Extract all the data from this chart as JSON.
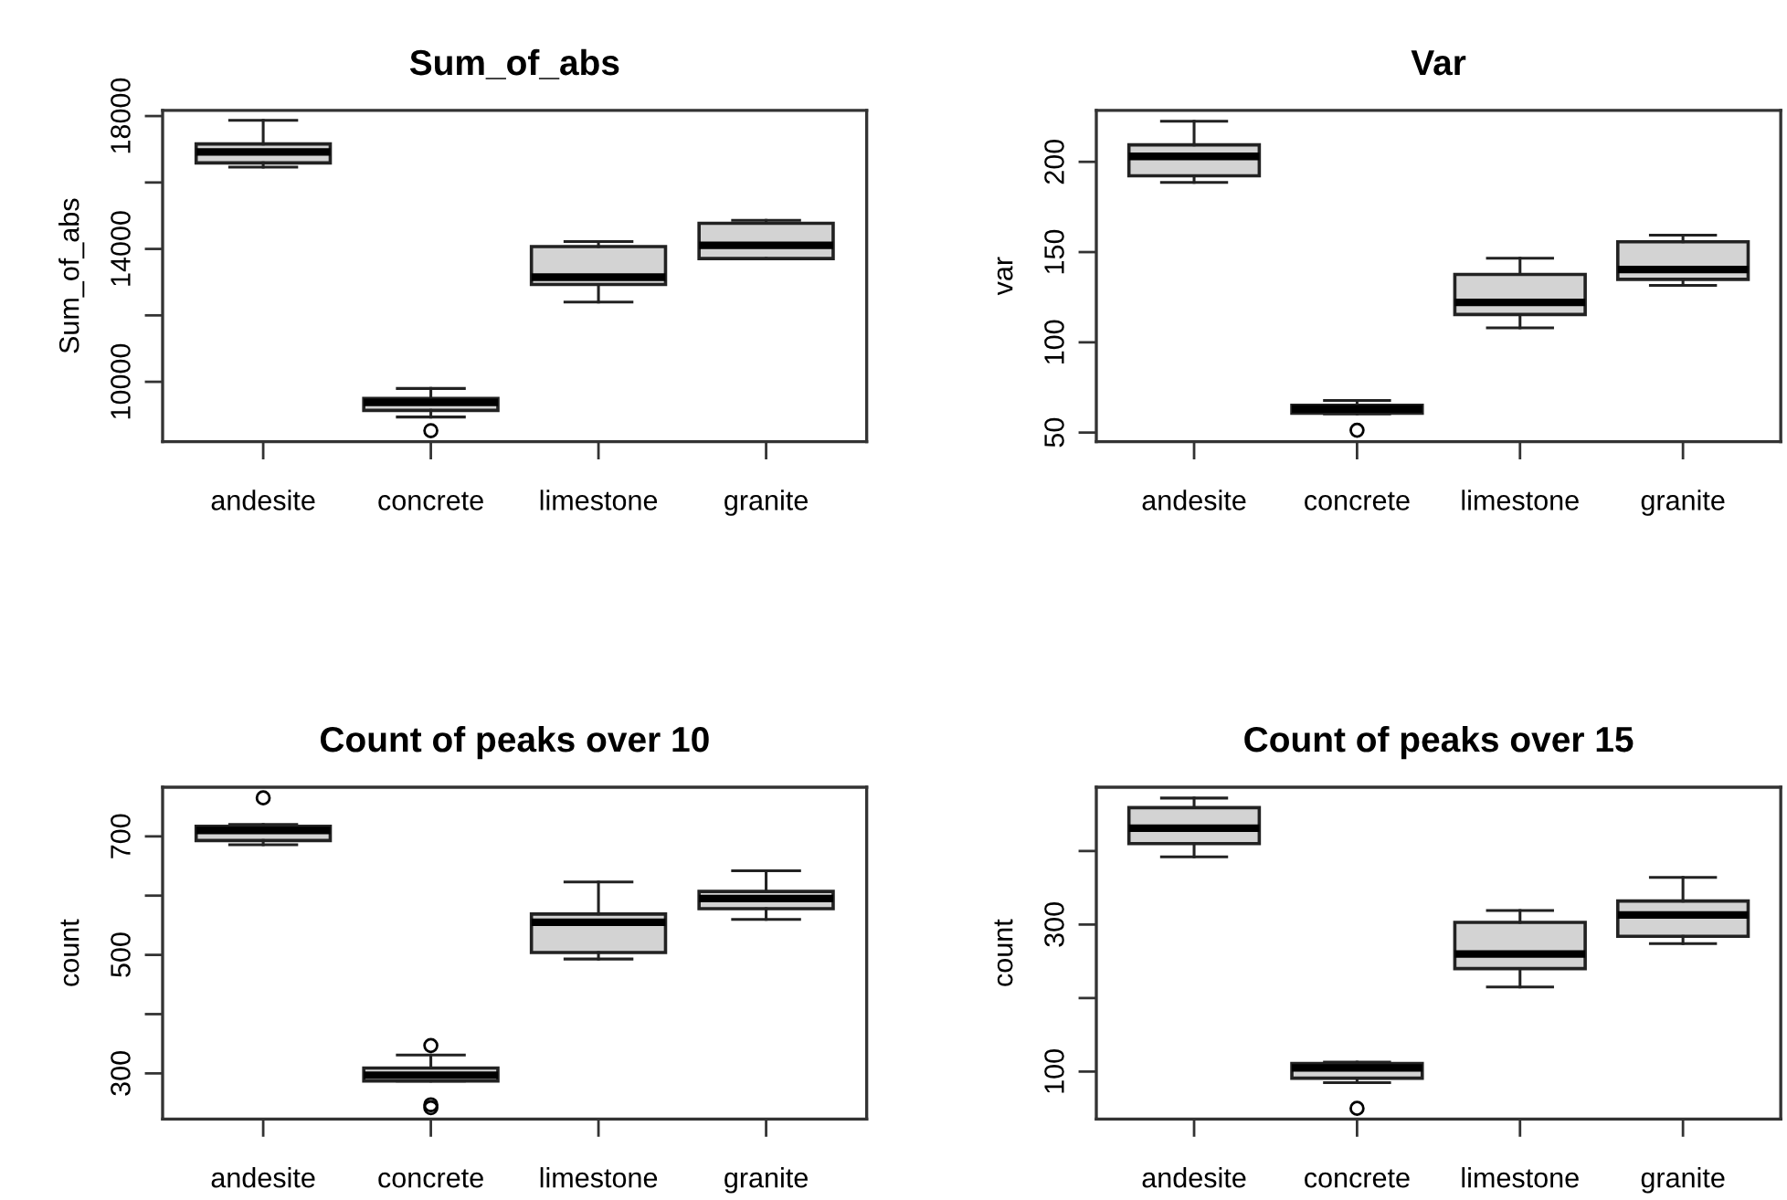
{
  "chart_data": [
    {
      "type": "box",
      "title": "Sum_of_abs",
      "ylabel": "Sum_of_abs",
      "categories": [
        "andesite",
        "concrete",
        "limestone",
        "granite"
      ],
      "color": "#d3d3d3",
      "ylim": [
        8200,
        18170
      ],
      "yticks": [
        10000,
        {
          "value": 12000,
          "label": null
        },
        14000,
        {
          "value": 16000,
          "label": null
        },
        18000
      ],
      "grid": false,
      "legend": false,
      "boxes": [
        {
          "low": 16460,
          "q1": 16590,
          "median": 16920,
          "q3": 17160,
          "high": 17870
        },
        {
          "low": 8940,
          "q1": 9140,
          "median": 9380,
          "q3": 9500,
          "high": 9800,
          "outliers": [
            8530
          ]
        },
        {
          "low": 12400,
          "q1": 12930,
          "median": 13150,
          "q3": 14070,
          "high": 14220
        },
        {
          "low": 13700,
          "q1": 13710,
          "median": 14110,
          "q3": 14770,
          "high": 14860
        }
      ]
    },
    {
      "type": "box",
      "title": "Var",
      "ylabel": "var",
      "categories": [
        "andesite",
        "concrete",
        "limestone",
        "granite"
      ],
      "color": "#d3d3d3",
      "ylim": [
        45,
        228.5
      ],
      "yticks": [
        50,
        100,
        150,
        200
      ],
      "grid": false,
      "legend": false,
      "boxes": [
        {
          "low": 188.6,
          "q1": 192.3,
          "median": 203,
          "q3": 209.4,
          "high": 222.5
        },
        {
          "low": 60.4,
          "q1": 60.7,
          "median": 63.1,
          "q3": 65.1,
          "high": 67.8,
          "outliers": [
            51.3
          ]
        },
        {
          "low": 108,
          "q1": 115.4,
          "median": 122.1,
          "q3": 137.6,
          "high": 146.6
        },
        {
          "low": 131.5,
          "q1": 134.9,
          "median": 140.3,
          "q3": 155.7,
          "high": 159.4
        }
      ]
    },
    {
      "type": "box",
      "title": "Count of peaks over 10",
      "ylabel": "count",
      "categories": [
        "andesite",
        "concrete",
        "limestone",
        "granite"
      ],
      "color": "#d3d3d3",
      "ylim": [
        223,
        783
      ],
      "yticks": [
        300,
        {
          "value": 400,
          "label": null
        },
        500,
        {
          "value": 600,
          "label": null
        },
        700
      ],
      "grid": false,
      "legend": false,
      "boxes": [
        {
          "low": 686,
          "q1": 693,
          "median": 710,
          "q3": 717,
          "high": 720,
          "outliers": [
            765
          ]
        },
        {
          "low": 287,
          "q1": 287,
          "median": 297,
          "q3": 309,
          "high": 331,
          "outliers": [
            347,
            247,
            242
          ]
        },
        {
          "low": 493,
          "q1": 504,
          "median": 555,
          "q3": 569,
          "high": 623
        },
        {
          "low": 560,
          "q1": 578,
          "median": 595,
          "q3": 607,
          "high": 642
        }
      ]
    },
    {
      "type": "box",
      "title": "Count of peaks over 15",
      "ylabel": "count",
      "categories": [
        "andesite",
        "concrete",
        "limestone",
        "granite"
      ],
      "color": "#d3d3d3",
      "ylim": [
        35.5,
        486.8
      ],
      "yticks": [
        100,
        {
          "value": 200,
          "label": null
        },
        300,
        {
          "value": 400,
          "label": null
        }
      ],
      "grid": false,
      "legend": false,
      "boxes": [
        {
          "low": 392,
          "q1": 410,
          "median": 431,
          "q3": 459,
          "high": 472
        },
        {
          "low": 85,
          "q1": 91,
          "median": 105,
          "q3": 111,
          "high": 113,
          "outliers": [
            50
          ]
        },
        {
          "low": 215,
          "q1": 240,
          "median": 260,
          "q3": 303,
          "high": 319
        },
        {
          "low": 274,
          "q1": 284,
          "median": 313,
          "q3": 332,
          "high": 364
        }
      ]
    }
  ]
}
